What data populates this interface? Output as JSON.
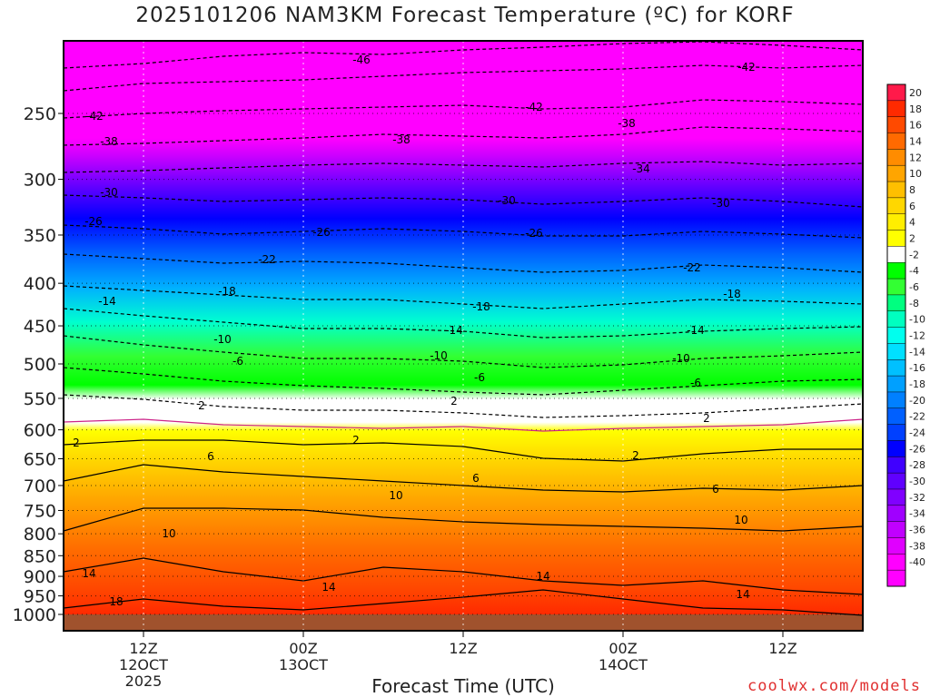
{
  "title": "2025101206 NAM3KM Forecast Temperature (ºC) for KORF",
  "xlabel": "Forecast Time (UTC)",
  "credit": "coolwx.com/models",
  "chart_data": {
    "type": "heatmap",
    "title": "2025101206 NAM3KM Forecast Temperature (ºC) for KORF",
    "xlabel": "Forecast Time (UTC)",
    "ylabel": "",
    "y_scale": "log-pressure",
    "y_ticks": [
      "250",
      "300",
      "350",
      "400",
      "450",
      "500",
      "550",
      "600",
      "650",
      "700",
      "750",
      "800",
      "850",
      "900",
      "950",
      "1000"
    ],
    "x_ticks": [
      {
        "label": [
          "12Z",
          "12OCT",
          "2025"
        ]
      },
      {
        "label": [
          "00Z",
          "13OCT"
        ]
      },
      {
        "label": [
          "12Z"
        ]
      },
      {
        "label": [
          "00Z",
          "14OCT"
        ]
      },
      {
        "label": [
          "12Z"
        ]
      }
    ],
    "colorbar": {
      "labels": [
        "20",
        "18",
        "16",
        "14",
        "12",
        "10",
        "8",
        "6",
        "4",
        "2",
        "-2",
        "-4",
        "-6",
        "-8",
        "-10",
        "-12",
        "-14",
        "-16",
        "-18",
        "-20",
        "-22",
        "-24",
        "-26",
        "-28",
        "-30",
        "-32",
        "-34",
        "-36",
        "-38",
        "-40"
      ],
      "colors": [
        "#ff1a4a",
        "#ff2a00",
        "#ff4a00",
        "#ff6a00",
        "#ff8c00",
        "#ffa500",
        "#ffbf00",
        "#ffd700",
        "#ffee00",
        "#ffff00",
        "#ffffff",
        "#00ff00",
        "#33ff33",
        "#00ff80",
        "#00ffc0",
        "#00ffee",
        "#00e0ff",
        "#00c0ff",
        "#00a0ff",
        "#0080ff",
        "#0060ff",
        "#0040ff",
        "#0000ff",
        "#4000ff",
        "#6000ff",
        "#8000ff",
        "#a000ff",
        "#c000ff",
        "#e000ff",
        "#ff00ff",
        "#ff00ff"
      ]
    },
    "contour_labels": [
      "-46",
      "-42",
      "-42",
      "-42",
      "-38",
      "-38",
      "-38",
      "-34",
      "-30",
      "-30",
      "-30",
      "-26",
      "-26",
      "-26",
      "-22",
      "-22",
      "-18",
      "-18",
      "-18",
      "-14",
      "-14",
      "-14",
      "-10",
      "-10",
      "-10",
      "-6",
      "-6",
      "-6",
      "2",
      "2",
      "2",
      "2",
      "2",
      "2",
      "6",
      "6",
      "6",
      "10",
      "10",
      "10",
      "14",
      "14",
      "14",
      "14",
      "18"
    ],
    "ground_color": "#a0522d"
  }
}
